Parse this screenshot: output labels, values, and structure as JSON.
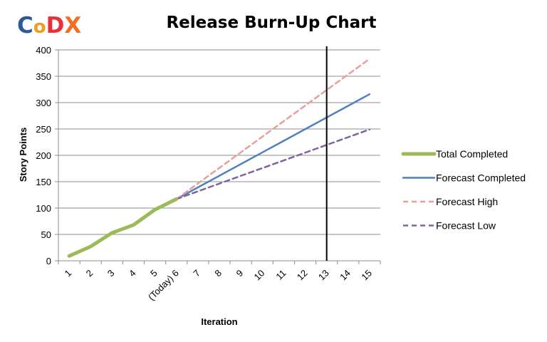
{
  "logo": {
    "text": "CoDX",
    "letters": [
      {
        "ch": "C",
        "color": "#2A5A9A"
      },
      {
        "ch": "o",
        "color": "#E8A020"
      },
      {
        "ch": "D",
        "color": "#E8303A"
      },
      {
        "ch": "X",
        "color": "#F07020"
      }
    ]
  },
  "chart_data": {
    "type": "line",
    "title": "Release Burn-Up Chart",
    "xlabel": "Iteration",
    "ylabel": "Story Points",
    "categories": [
      "1",
      "2",
      "3",
      "4",
      "5",
      "(Today) 6",
      "7",
      "8",
      "9",
      "10",
      "11",
      "12",
      "13",
      "14",
      "15"
    ],
    "ylim": [
      0,
      400
    ],
    "yticks": [
      0,
      50,
      100,
      150,
      200,
      250,
      300,
      350,
      400
    ],
    "grid": "horizontal",
    "legend_position": "right",
    "marker_line_at": "13",
    "series": [
      {
        "name": "Total Completed",
        "color": "#9BBB59",
        "style": "solid-thick",
        "x": [
          1,
          2,
          3,
          4,
          5,
          6
        ],
        "values": [
          9,
          27,
          53,
          68,
          97,
          117
        ]
      },
      {
        "name": "Forecast Completed",
        "color": "#4F81BD",
        "style": "solid",
        "x": [
          6,
          15
        ],
        "values": [
          117,
          316
        ]
      },
      {
        "name": "Forecast High",
        "color": "#E6A09A",
        "style": "dashed",
        "x": [
          6,
          15
        ],
        "values": [
          117,
          383
        ]
      },
      {
        "name": "Forecast Low",
        "color": "#8064A2",
        "style": "dashed",
        "x": [
          6,
          15
        ],
        "values": [
          117,
          249
        ]
      }
    ]
  }
}
